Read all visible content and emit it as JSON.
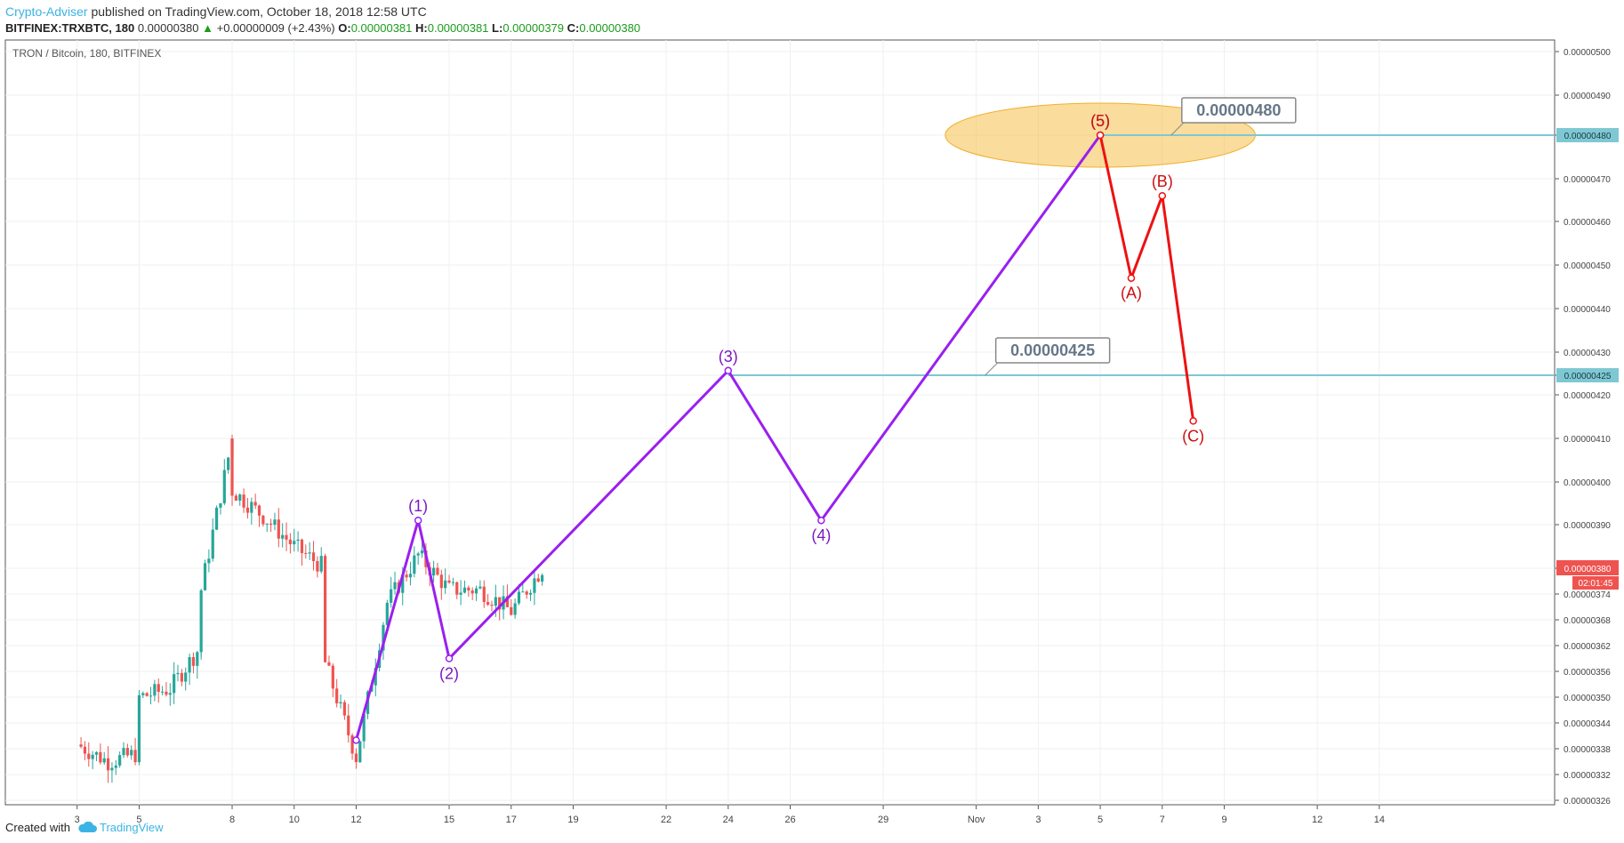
{
  "header": {
    "publisher": "Crypto-Adviser",
    "published_text": "published on TradingView.com, October 18, 2018 12:58 UTC",
    "symbol": "BITFINEX:TRXBTC, 180",
    "last_price": "0.00000380",
    "change_arrow": "▲",
    "change": "+0.00000009 (+2.43%)",
    "o_label": "O:",
    "o_value": "0.00000381",
    "h_label": "H:",
    "h_value": "0.00000381",
    "l_label": "L:",
    "l_value": "0.00000379",
    "c_label": "C:",
    "c_value": "0.00000380"
  },
  "footer": {
    "created_with": "Created with",
    "brand": "TradingView",
    "brand_icon": "tradingview-cloud-icon"
  },
  "colors": {
    "up": "#26a69a",
    "down": "#ef5350",
    "impulse": "#9a1ff0",
    "correction": "#ee1111",
    "level_line": "#7ec8d3",
    "target_zone": "#f6c04a",
    "last_price_tag": "#ef5350"
  },
  "chart_data": {
    "type": "candlestick",
    "title": "TRON / Bitcoin, 180, BITFINEX",
    "x_ticks": [
      "3",
      "5",
      "8",
      "10",
      "12",
      "15",
      "17",
      "19",
      "22",
      "24",
      "26",
      "29",
      "Nov",
      "3",
      "5",
      "7",
      "9",
      "12",
      "14"
    ],
    "y_ticks": [
      "0.00000500",
      "0.00000490",
      "0.00000480",
      "0.00000470",
      "0.00000460",
      "0.00000450",
      "0.00000440",
      "0.00000430",
      "0.00000425",
      "0.00000420",
      "0.00000410",
      "0.00000400",
      "0.00000390",
      "0.00000380",
      "0.00000374",
      "0.00000368",
      "0.00000362",
      "0.00000356",
      "0.00000350",
      "0.00000344",
      "0.00000338",
      "0.00000332",
      "0.00000326"
    ],
    "ylim": [
      3.23e-06,
      5.01e-06
    ],
    "candles_close_path": [
      {
        "date": "Oct 3",
        "close": 3.39e-06
      },
      {
        "date": "Oct 4",
        "close": 3.35e-06
      },
      {
        "date": "Oct 5",
        "close": 3.37e-06
      },
      {
        "date": "Oct 5",
        "close": 3.5e-06
      },
      {
        "date": "Oct 6",
        "close": 3.52e-06
      },
      {
        "date": "Oct 7",
        "close": 3.62e-06
      },
      {
        "date": "Oct 7",
        "close": 3.75e-06
      },
      {
        "date": "Oct 8",
        "close": 4.1e-06
      },
      {
        "date": "Oct 8",
        "close": 3.98e-06
      },
      {
        "date": "Oct 9",
        "close": 3.92e-06
      },
      {
        "date": "Oct 10",
        "close": 3.85e-06
      },
      {
        "date": "Oct 11",
        "close": 3.8e-06
      },
      {
        "date": "Oct 11",
        "close": 3.58e-06
      },
      {
        "date": "Oct 12",
        "close": 3.36e-06
      },
      {
        "date": "Oct 13",
        "close": 3.72e-06
      },
      {
        "date": "Oct 14",
        "close": 3.83e-06
      },
      {
        "date": "Oct 15",
        "close": 3.75e-06
      },
      {
        "date": "Oct 16",
        "close": 3.75e-06
      },
      {
        "date": "Oct 17",
        "close": 3.7e-06
      },
      {
        "date": "Oct 18",
        "close": 3.8e-06
      }
    ],
    "last_price_label": "0.00000380",
    "countdown_label": "02:01:45",
    "levels": [
      {
        "value": 4.8e-06,
        "label": "0.00000480",
        "axis_label": "0.00000480"
      },
      {
        "value": 4.25e-06,
        "label": "0.00000425",
        "axis_label": "0.00000425"
      }
    ],
    "impulse_wave": [
      {
        "label": "",
        "date": "Oct 12",
        "value": 3.4e-06
      },
      {
        "label": "(1)",
        "date": "Oct 14",
        "value": 3.91e-06
      },
      {
        "label": "(2)",
        "date": "Oct 15",
        "value": 3.59e-06
      },
      {
        "label": "(3)",
        "date": "Oct 24",
        "value": 4.26e-06
      },
      {
        "label": "(4)",
        "date": "Oct 27",
        "value": 3.91e-06
      },
      {
        "label": "(5)",
        "date": "Nov 5",
        "value": 4.8e-06
      }
    ],
    "correction_wave": [
      {
        "label": "(5)",
        "date": "Nov 5",
        "value": 4.8e-06
      },
      {
        "label": "(A)",
        "date": "Nov 6",
        "value": 4.47e-06
      },
      {
        "label": "(B)",
        "date": "Nov 7",
        "value": 4.66e-06
      },
      {
        "label": "(C)",
        "date": "Nov 8",
        "value": 4.14e-06
      }
    ],
    "target_zone": {
      "center_value": 4.8e-06,
      "date_from": "Oct 31",
      "date_to": "Nov 10"
    },
    "grid": true
  }
}
